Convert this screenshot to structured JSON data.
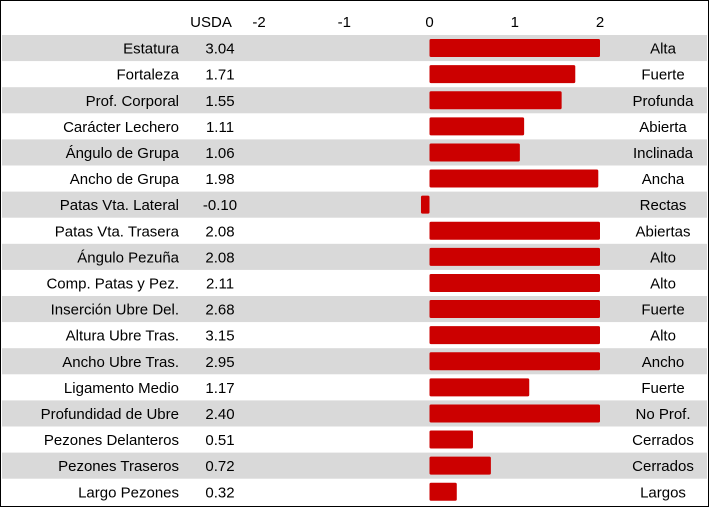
{
  "chart_data": {
    "type": "bar",
    "orientation": "horizontal",
    "value_column_label": "USDA",
    "x_ticks": [
      "-2",
      "-1",
      "0",
      "1",
      "2"
    ],
    "xlim": [
      -2,
      2
    ],
    "bar_color": "#cc0000",
    "stripe_color": "#d9d9d9",
    "rows": [
      {
        "trait": "Estatura",
        "value_text": "3.04",
        "value": 3.04,
        "descriptor": "Alta"
      },
      {
        "trait": "Fortaleza",
        "value_text": "1.71",
        "value": 1.71,
        "descriptor": "Fuerte"
      },
      {
        "trait": "Prof. Corporal",
        "value_text": "1.55",
        "value": 1.55,
        "descriptor": "Profunda"
      },
      {
        "trait": "Carácter Lechero",
        "value_text": "1.11",
        "value": 1.11,
        "descriptor": "Abierta"
      },
      {
        "trait": "Ángulo de Grupa",
        "value_text": "1.06",
        "value": 1.06,
        "descriptor": "Inclinada"
      },
      {
        "trait": "Ancho de Grupa",
        "value_text": "1.98",
        "value": 1.98,
        "descriptor": "Ancha"
      },
      {
        "trait": "Patas Vta. Lateral",
        "value_text": "-0.10",
        "value": -0.1,
        "descriptor": "Rectas"
      },
      {
        "trait": "Patas Vta. Trasera",
        "value_text": "2.08",
        "value": 2.08,
        "descriptor": "Abiertas"
      },
      {
        "trait": "Ángulo Pezuña",
        "value_text": "2.08",
        "value": 2.08,
        "descriptor": "Alto"
      },
      {
        "trait": "Comp. Patas y Pez.",
        "value_text": "2.11",
        "value": 2.11,
        "descriptor": "Alto"
      },
      {
        "trait": "Inserción Ubre Del.",
        "value_text": "2.68",
        "value": 2.68,
        "descriptor": "Fuerte"
      },
      {
        "trait": "Altura Ubre Tras.",
        "value_text": "3.15",
        "value": 3.15,
        "descriptor": "Alto"
      },
      {
        "trait": "Ancho Ubre Tras.",
        "value_text": "2.95",
        "value": 2.95,
        "descriptor": "Ancho"
      },
      {
        "trait": "Ligamento Medio",
        "value_text": "1.17",
        "value": 1.17,
        "descriptor": "Fuerte"
      },
      {
        "trait": "Profundidad de Ubre",
        "value_text": "2.40",
        "value": 2.4,
        "descriptor": "No Prof."
      },
      {
        "trait": "Pezones Delanteros",
        "value_text": "0.51",
        "value": 0.51,
        "descriptor": "Cerrados"
      },
      {
        "trait": "Pezones Traseros",
        "value_text": "0.72",
        "value": 0.72,
        "descriptor": "Cerrados"
      },
      {
        "trait": "Largo Pezones",
        "value_text": "0.32",
        "value": 0.32,
        "descriptor": "Largos"
      }
    ]
  }
}
